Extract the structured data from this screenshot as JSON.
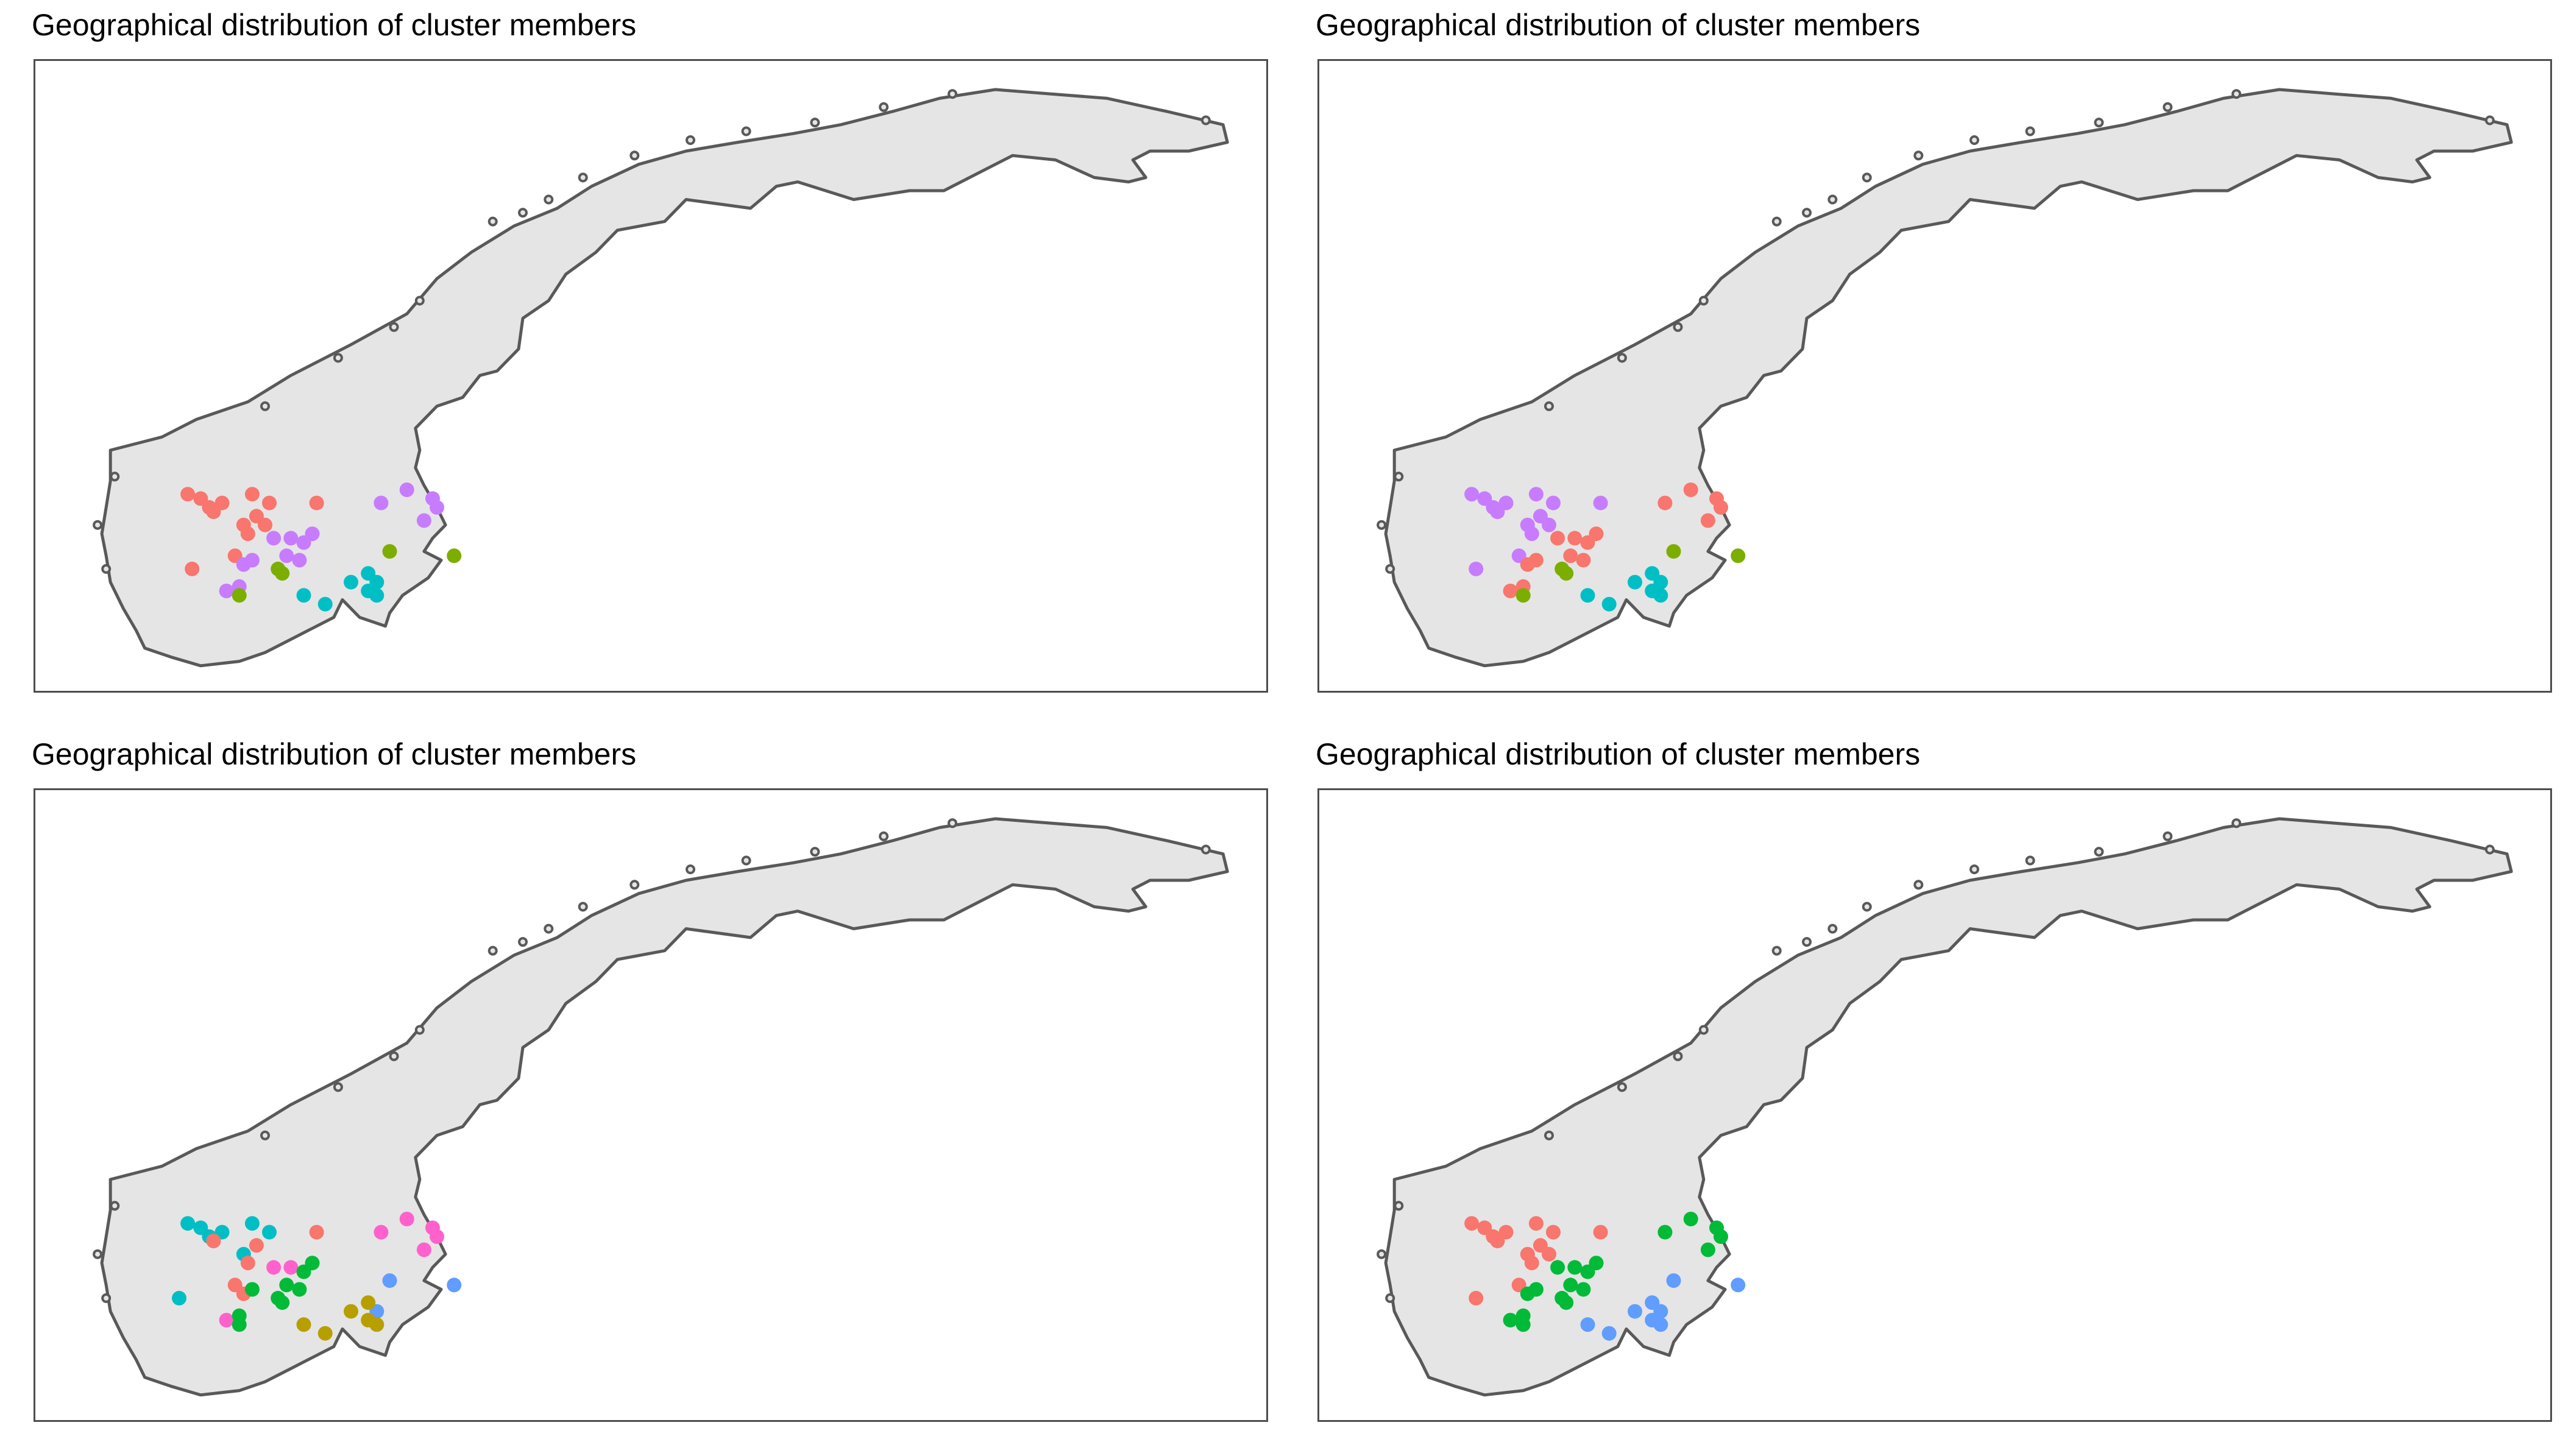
{
  "chart_data": [
    {
      "type": "scatter",
      "title": "Geographical distribution of cluster members",
      "map": "Norway",
      "series": [
        {
          "color": "#F8766D",
          "points": [
            [
              6.8,
              61.9
            ],
            [
              7.1,
              61.8
            ],
            [
              7.3,
              61.6
            ],
            [
              7.6,
              61.7
            ],
            [
              8.3,
              61.9
            ],
            [
              8.4,
              61.4
            ],
            [
              8.7,
              61.7
            ],
            [
              8.1,
              61.2
            ],
            [
              8.6,
              61.2
            ],
            [
              7.4,
              61.5
            ],
            [
              9.8,
              61.7
            ],
            [
              8.2,
              61.0
            ],
            [
              7.9,
              60.5
            ],
            [
              6.9,
              60.2
            ]
          ]
        },
        {
          "color": "#C77CFF",
          "points": [
            [
              11.3,
              61.7
            ],
            [
              11.9,
              62.0
            ],
            [
              12.5,
              61.8
            ],
            [
              12.6,
              61.6
            ],
            [
              12.3,
              61.3
            ],
            [
              8.8,
              60.9
            ],
            [
              9.2,
              60.9
            ],
            [
              9.5,
              60.8
            ],
            [
              9.7,
              61.0
            ],
            [
              9.1,
              60.5
            ],
            [
              9.4,
              60.4
            ],
            [
              8.3,
              60.4
            ],
            [
              8.1,
              60.3
            ],
            [
              8.0,
              59.8
            ],
            [
              7.7,
              59.7
            ]
          ]
        },
        {
          "color": "#7CAE00",
          "points": [
            [
              11.5,
              60.6
            ],
            [
              13.0,
              60.5
            ],
            [
              9.0,
              60.1
            ],
            [
              8.9,
              60.2
            ],
            [
              8.0,
              59.6
            ]
          ]
        },
        {
          "color": "#00BFC4",
          "points": [
            [
              9.5,
              59.6
            ],
            [
              10.0,
              59.4
            ],
            [
              10.6,
              59.9
            ],
            [
              11.0,
              60.1
            ],
            [
              11.2,
              59.9
            ],
            [
              11.0,
              59.7
            ],
            [
              11.2,
              59.6
            ]
          ]
        }
      ]
    },
    {
      "type": "scatter",
      "title": "Geographical distribution of cluster members",
      "map": "Norway",
      "series": [
        {
          "color": "#C77CFF",
          "points": [
            [
              6.8,
              61.9
            ],
            [
              7.1,
              61.8
            ],
            [
              7.3,
              61.6
            ],
            [
              7.6,
              61.7
            ],
            [
              8.3,
              61.9
            ],
            [
              8.4,
              61.4
            ],
            [
              8.7,
              61.7
            ],
            [
              8.1,
              61.2
            ],
            [
              8.6,
              61.2
            ],
            [
              7.4,
              61.5
            ],
            [
              9.8,
              61.7
            ],
            [
              8.2,
              61.0
            ],
            [
              7.9,
              60.5
            ],
            [
              6.9,
              60.2
            ]
          ]
        },
        {
          "color": "#F8766D",
          "points": [
            [
              11.3,
              61.7
            ],
            [
              11.9,
              62.0
            ],
            [
              12.5,
              61.8
            ],
            [
              12.6,
              61.6
            ],
            [
              12.3,
              61.3
            ],
            [
              8.8,
              60.9
            ],
            [
              9.2,
              60.9
            ],
            [
              9.5,
              60.8
            ],
            [
              9.7,
              61.0
            ],
            [
              9.1,
              60.5
            ],
            [
              9.4,
              60.4
            ],
            [
              8.3,
              60.4
            ],
            [
              8.1,
              60.3
            ],
            [
              8.0,
              59.8
            ],
            [
              7.7,
              59.7
            ]
          ]
        },
        {
          "color": "#7CAE00",
          "points": [
            [
              11.5,
              60.6
            ],
            [
              13.0,
              60.5
            ],
            [
              9.0,
              60.1
            ],
            [
              8.9,
              60.2
            ],
            [
              8.0,
              59.6
            ]
          ]
        },
        {
          "color": "#00BFC4",
          "points": [
            [
              9.5,
              59.6
            ],
            [
              10.0,
              59.4
            ],
            [
              10.6,
              59.9
            ],
            [
              11.0,
              60.1
            ],
            [
              11.2,
              59.9
            ],
            [
              11.0,
              59.7
            ],
            [
              11.2,
              59.6
            ]
          ]
        }
      ]
    },
    {
      "type": "scatter",
      "title": "Geographical distribution of cluster members",
      "map": "Norway",
      "series": [
        {
          "color": "#00BFC4",
          "points": [
            [
              6.8,
              61.9
            ],
            [
              7.1,
              61.8
            ],
            [
              7.3,
              61.6
            ],
            [
              7.6,
              61.7
            ],
            [
              8.3,
              61.9
            ],
            [
              8.7,
              61.7
            ],
            [
              8.1,
              61.2
            ],
            [
              6.6,
              60.2
            ]
          ]
        },
        {
          "color": "#F8766D",
          "points": [
            [
              8.4,
              61.4
            ],
            [
              9.8,
              61.7
            ],
            [
              8.2,
              61.0
            ],
            [
              7.9,
              60.5
            ],
            [
              7.4,
              61.5
            ],
            [
              8.1,
              60.3
            ]
          ]
        },
        {
          "color": "#FF61CC",
          "points": [
            [
              11.3,
              61.7
            ],
            [
              11.9,
              62.0
            ],
            [
              12.5,
              61.8
            ],
            [
              12.6,
              61.6
            ],
            [
              12.3,
              61.3
            ],
            [
              8.8,
              60.9
            ],
            [
              9.2,
              60.9
            ],
            [
              7.7,
              59.7
            ]
          ]
        },
        {
          "color": "#00BA38",
          "points": [
            [
              9.5,
              60.8
            ],
            [
              9.7,
              61.0
            ],
            [
              9.1,
              60.5
            ],
            [
              9.4,
              60.4
            ],
            [
              8.3,
              60.4
            ],
            [
              8.0,
              59.8
            ],
            [
              9.0,
              60.1
            ],
            [
              8.9,
              60.2
            ],
            [
              8.0,
              59.6
            ]
          ]
        },
        {
          "color": "#619CFF",
          "points": [
            [
              11.5,
              60.6
            ],
            [
              13.0,
              60.5
            ],
            [
              11.2,
              59.9
            ]
          ]
        },
        {
          "color": "#B79F00",
          "points": [
            [
              9.5,
              59.6
            ],
            [
              10.0,
              59.4
            ],
            [
              10.6,
              59.9
            ],
            [
              11.0,
              60.1
            ],
            [
              11.0,
              59.7
            ],
            [
              11.2,
              59.6
            ]
          ]
        }
      ]
    },
    {
      "type": "scatter",
      "title": "Geographical distribution of cluster members",
      "map": "Norway",
      "series": [
        {
          "color": "#F8766D",
          "points": [
            [
              6.8,
              61.9
            ],
            [
              7.1,
              61.8
            ],
            [
              7.3,
              61.6
            ],
            [
              7.6,
              61.7
            ],
            [
              8.3,
              61.9
            ],
            [
              8.4,
              61.4
            ],
            [
              8.7,
              61.7
            ],
            [
              8.1,
              61.2
            ],
            [
              8.6,
              61.2
            ],
            [
              7.4,
              61.5
            ],
            [
              9.8,
              61.7
            ],
            [
              8.2,
              61.0
            ],
            [
              7.9,
              60.5
            ],
            [
              6.9,
              60.2
            ]
          ]
        },
        {
          "color": "#00BA38",
          "points": [
            [
              11.3,
              61.7
            ],
            [
              11.9,
              62.0
            ],
            [
              12.5,
              61.8
            ],
            [
              12.6,
              61.6
            ],
            [
              12.3,
              61.3
            ],
            [
              8.8,
              60.9
            ],
            [
              9.2,
              60.9
            ],
            [
              9.5,
              60.8
            ],
            [
              9.7,
              61.0
            ],
            [
              9.1,
              60.5
            ],
            [
              9.4,
              60.4
            ],
            [
              8.3,
              60.4
            ],
            [
              8.1,
              60.3
            ],
            [
              8.0,
              59.8
            ],
            [
              7.7,
              59.7
            ],
            [
              9.0,
              60.1
            ],
            [
              8.9,
              60.2
            ],
            [
              8.0,
              59.6
            ]
          ]
        },
        {
          "color": "#619CFF",
          "points": [
            [
              11.5,
              60.6
            ],
            [
              13.0,
              60.5
            ],
            [
              9.5,
              59.6
            ],
            [
              10.0,
              59.4
            ],
            [
              10.6,
              59.9
            ],
            [
              11.0,
              60.1
            ],
            [
              11.2,
              59.9
            ],
            [
              11.0,
              59.7
            ],
            [
              11.2,
              59.6
            ]
          ]
        }
      ]
    }
  ],
  "colors": {
    "land": "#e5e5e5",
    "coast": "#595959",
    "frame": "#4d4d4d"
  }
}
